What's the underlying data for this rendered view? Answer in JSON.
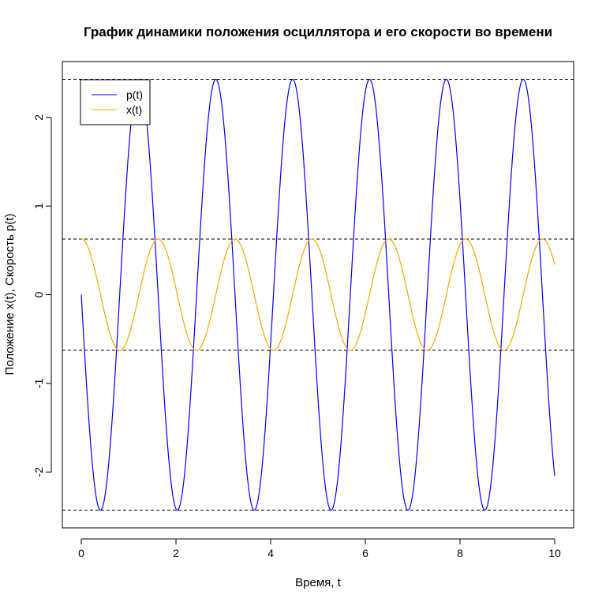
{
  "chart_data": {
    "type": "line",
    "title": "График динамики положения осциллятора и его скорости во времени",
    "xlabel": "Время, t",
    "ylabel": "Положение x(t), Скорость p(t)",
    "xlim": [
      -0.4,
      10.4
    ],
    "ylim": [
      -2.63,
      2.63
    ],
    "xticks": [
      0,
      2,
      4,
      6,
      8,
      10
    ],
    "yticks": [
      -2,
      -1,
      0,
      1,
      2
    ],
    "x_start": 0,
    "x_end": 10,
    "grid": false,
    "legend_position": "top-left",
    "series": [
      {
        "name": "p(t)",
        "color": "#0000FF",
        "formula": "p(t) = -2.43·sin(3.87·t)",
        "amplitude": 2.43,
        "omega": 3.87,
        "phase": "sin",
        "sign": -1
      },
      {
        "name": "x(t)",
        "color": "#FFA500",
        "formula": "x(t) = 0.628·cos(3.87·t)",
        "amplitude": 0.628,
        "omega": 3.87,
        "phase": "cos",
        "sign": 1
      }
    ],
    "hlines": [
      {
        "y": 2.43,
        "style": "dashed"
      },
      {
        "y": 0.628,
        "style": "dashed"
      },
      {
        "y": -0.628,
        "style": "dashed"
      },
      {
        "y": -2.43,
        "style": "dashed"
      }
    ]
  }
}
